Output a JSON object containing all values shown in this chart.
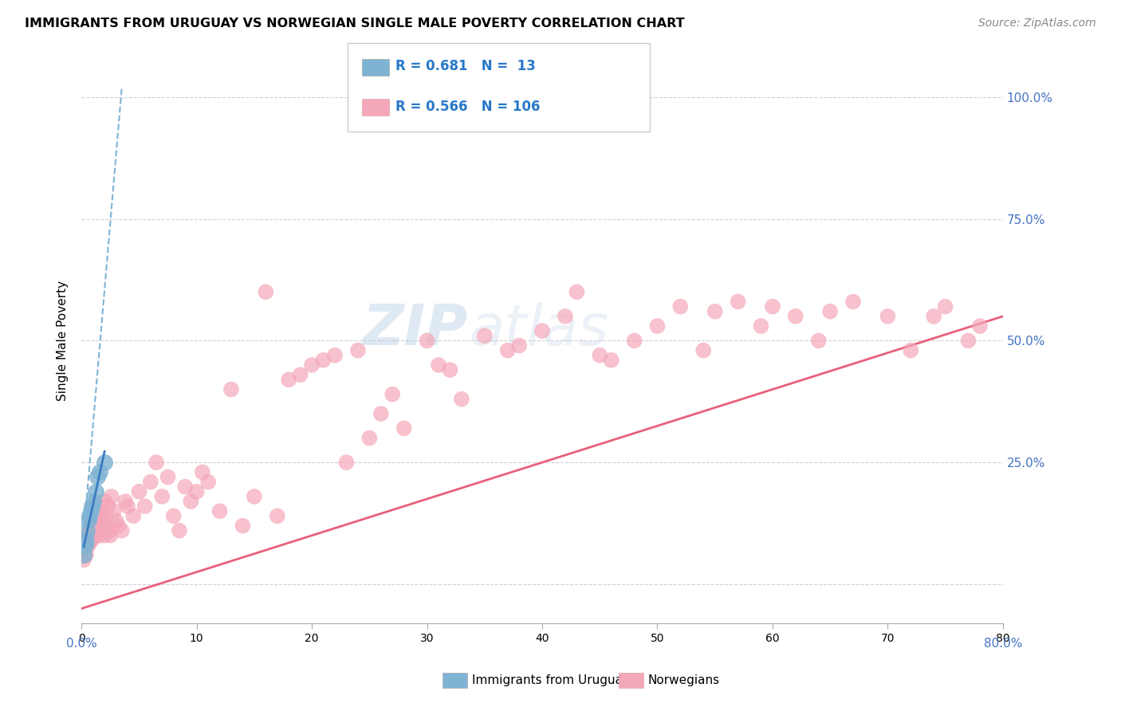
{
  "title": "IMMIGRANTS FROM URUGUAY VS NORWEGIAN SINGLE MALE POVERTY CORRELATION CHART",
  "source": "Source: ZipAtlas.com",
  "ylabel": "Single Male Poverty",
  "legend_label1": "Immigrants from Uruguay",
  "legend_label2": "Norwegians",
  "R1": "0.681",
  "N1": "13",
  "R2": "0.566",
  "N2": "106",
  "color_blue": "#7fb3d3",
  "color_blue_line": "#7fb3d3",
  "color_blue_solid": "#3a7bbf",
  "color_pink": "#f4a7b9",
  "color_pink_line": "#e8607a",
  "watermark_zip": "ZIP",
  "watermark_atlas": "atlas",
  "xlim": [
    0.0,
    80.0
  ],
  "ylim": [
    -8.0,
    108.0
  ],
  "blue_x": [
    0.2,
    0.3,
    0.4,
    0.5,
    0.6,
    0.7,
    0.8,
    0.9,
    1.0,
    1.2,
    1.4,
    1.6,
    2.0
  ],
  "blue_y": [
    6,
    8,
    9,
    11,
    13,
    14,
    15,
    16,
    17,
    19,
    22,
    23,
    25
  ],
  "pink_x": [
    0.2,
    0.3,
    0.4,
    0.5,
    0.5,
    0.6,
    0.7,
    0.8,
    0.9,
    1.0,
    1.0,
    1.1,
    1.2,
    1.3,
    1.4,
    1.5,
    1.5,
    1.6,
    1.7,
    1.8,
    2.0,
    2.0,
    2.1,
    2.2,
    2.3,
    2.5,
    2.6,
    2.8,
    3.0,
    3.2,
    3.5,
    3.8,
    4.0,
    4.5,
    5.0,
    5.5,
    6.0,
    6.5,
    7.0,
    7.5,
    8.0,
    8.5,
    9.0,
    9.5,
    10.0,
    10.5,
    11.0,
    12.0,
    13.0,
    14.0,
    15.0,
    16.0,
    17.0,
    18.0,
    19.0,
    20.0,
    21.0,
    22.0,
    23.0,
    24.0,
    25.0,
    26.0,
    27.0,
    28.0,
    30.0,
    31.0,
    32.0,
    33.0,
    35.0,
    37.0,
    38.0,
    40.0,
    42.0,
    43.0,
    45.0,
    46.0,
    48.0,
    50.0,
    52.0,
    54.0,
    55.0,
    57.0,
    59.0,
    60.0,
    62.0,
    64.0,
    65.0,
    67.0,
    70.0,
    72.0,
    74.0,
    75.0,
    77.0,
    78.0,
    0.3,
    0.4,
    0.5,
    0.6,
    0.7,
    0.8,
    1.0,
    1.2,
    1.5,
    1.8,
    2.0,
    2.5
  ],
  "pink_y": [
    5,
    7,
    6,
    9,
    10,
    8,
    10,
    11,
    9,
    12,
    13,
    11,
    10,
    14,
    12,
    15,
    14,
    13,
    16,
    12,
    10,
    17,
    14,
    11,
    16,
    10,
    18,
    15,
    13,
    12,
    11,
    17,
    16,
    14,
    19,
    16,
    21,
    25,
    18,
    22,
    14,
    11,
    20,
    17,
    19,
    23,
    21,
    15,
    40,
    12,
    18,
    60,
    14,
    42,
    43,
    45,
    46,
    47,
    25,
    48,
    30,
    35,
    39,
    32,
    50,
    45,
    44,
    38,
    51,
    48,
    49,
    52,
    55,
    60,
    47,
    46,
    50,
    53,
    57,
    48,
    56,
    58,
    53,
    57,
    55,
    50,
    56,
    58,
    55,
    48,
    55,
    57,
    50,
    53,
    6,
    10,
    8,
    10,
    9,
    11,
    10,
    12,
    10,
    13,
    12,
    11
  ],
  "pink_line_x0": 0.0,
  "pink_line_y0": -5.0,
  "pink_line_x1": 80.0,
  "pink_line_y1": 55.0,
  "blue_line_x0": 0.0,
  "blue_line_y0": 5.0,
  "blue_line_x1": 3.5,
  "blue_line_y1": 102.0
}
